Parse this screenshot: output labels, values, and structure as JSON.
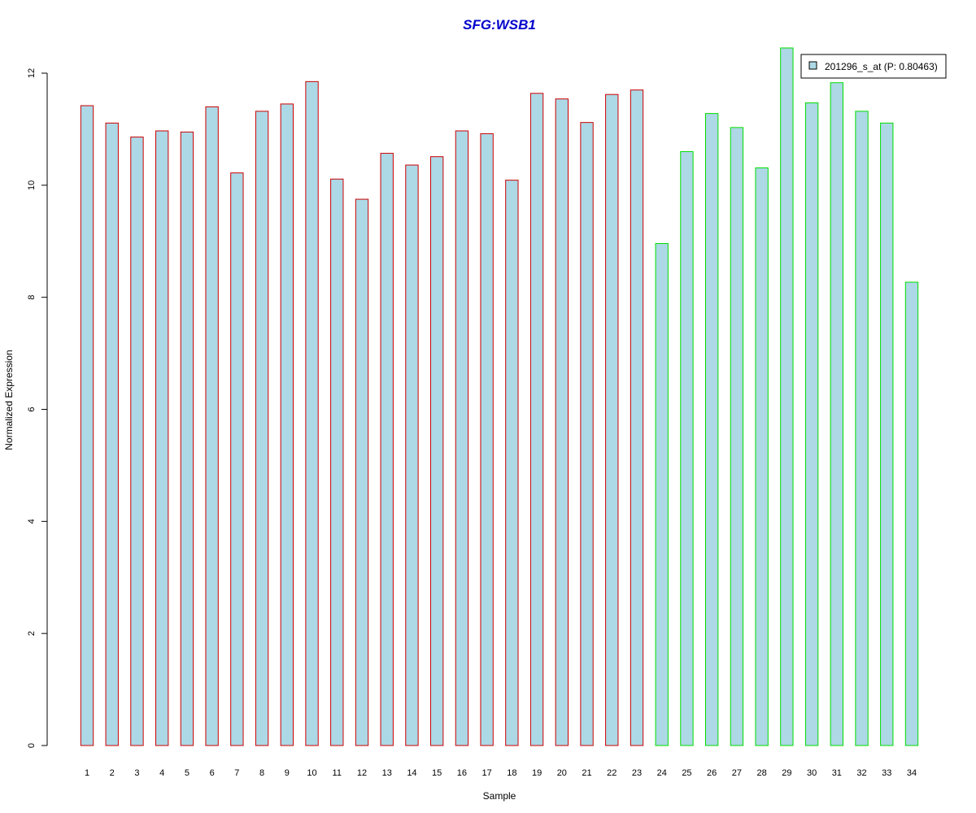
{
  "chart_data": {
    "type": "bar",
    "title": "SFG:WSB1",
    "xlabel": "Sample",
    "ylabel": "Normalized Expression",
    "ylim": [
      0,
      12
    ],
    "yticks": [
      0,
      2,
      4,
      6,
      8,
      10,
      12
    ],
    "categories": [
      "1",
      "2",
      "3",
      "4",
      "5",
      "6",
      "7",
      "8",
      "9",
      "10",
      "11",
      "12",
      "13",
      "14",
      "15",
      "16",
      "17",
      "18",
      "19",
      "20",
      "21",
      "22",
      "23",
      "24",
      "25",
      "26",
      "27",
      "28",
      "29",
      "30",
      "31",
      "32",
      "33",
      "34"
    ],
    "series": [
      {
        "name": "201296_s_at (P: 0.80463)",
        "values": [
          11.42,
          11.11,
          10.86,
          10.97,
          10.95,
          11.4,
          10.22,
          11.32,
          11.45,
          11.85,
          10.11,
          9.75,
          10.57,
          10.36,
          10.51,
          10.97,
          10.92,
          10.09,
          11.64,
          11.54,
          11.12,
          11.62,
          11.7,
          8.96,
          10.6,
          11.28,
          11.03,
          10.31,
          12.45,
          11.47,
          11.83,
          11.32,
          11.11,
          8.27
        ]
      }
    ],
    "groups": [
      {
        "samples": "1-23",
        "border_color": "#d62728"
      },
      {
        "samples": "24-34",
        "border_color": "#2ecc40"
      }
    ],
    "colors": {
      "fill": "#add8e6",
      "group1_border": "#cc0000",
      "group2_border": "#00dd00",
      "title": "#0000cc"
    },
    "group_split_index": 23,
    "legend_position": "top-right",
    "grid": false
  }
}
